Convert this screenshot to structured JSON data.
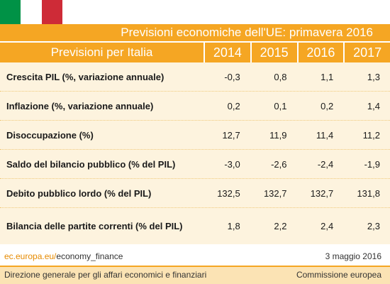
{
  "header": {
    "title": "Previsioni economiche dell'UE: primavera 2016"
  },
  "table": {
    "header_label": "Previsioni per Italia",
    "years": [
      "2014",
      "2015",
      "2016",
      "2017"
    ],
    "rows": [
      {
        "label": "Crescita PIL (%, variazione annuale)",
        "values": [
          "-0,3",
          "0,8",
          "1,1",
          "1,3"
        ]
      },
      {
        "label": "Inflazione (%, variazione annuale)",
        "values": [
          "0,2",
          "0,1",
          "0,2",
          "1,4"
        ]
      },
      {
        "label": "Disoccupazione (%)",
        "values": [
          "12,7",
          "11,9",
          "11,4",
          "11,2"
        ]
      },
      {
        "label": "Saldo del bilancio pubblico (% del PIL)",
        "values": [
          "-3,0",
          "-2,6",
          "-2,4",
          "-1,9"
        ]
      },
      {
        "label": "Debito pubblico lordo (% del PIL)",
        "values": [
          "132,5",
          "132,7",
          "132,7",
          "131,8"
        ]
      },
      {
        "label": "Bilancia delle partite correnti (% del PIL)",
        "values": [
          "1,8",
          "2,2",
          "2,4",
          "2,3"
        ]
      }
    ]
  },
  "footer": {
    "source_domain": "ec.europa.eu/",
    "source_path": "economy_finance",
    "date": "3 maggio 2016",
    "directorate": "Direzione generale per gli affari economici e finanziari",
    "commission": "Commissione europea"
  },
  "colors": {
    "accent": "#f5a623",
    "table_bg": "#fdf3de",
    "flag_green": "#009246",
    "flag_white": "#ffffff",
    "flag_red": "#ce2b37"
  },
  "icons": {
    "flag": "italy-flag-icon"
  }
}
